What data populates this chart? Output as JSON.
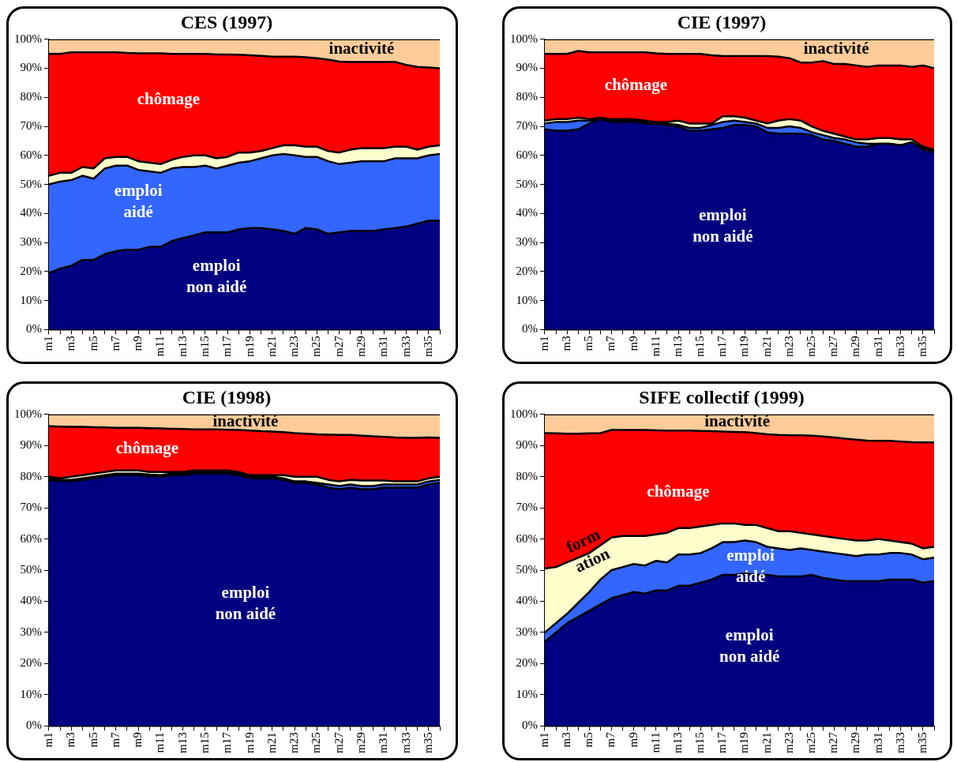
{
  "chart_data": [
    {
      "type": "area",
      "title": "CES (1997)",
      "stacked": true,
      "legend": false,
      "grid": false,
      "categories": [
        "m1",
        null,
        "m3",
        null,
        "m5",
        null,
        "m7",
        null,
        "m9",
        null,
        "m11",
        null,
        "m13",
        null,
        "m15",
        null,
        "m17",
        null,
        "m19",
        null,
        "m21",
        null,
        "m23",
        null,
        "m25",
        null,
        "m27",
        null,
        "m29",
        null,
        "m31",
        null,
        "m33",
        null,
        "m35",
        null
      ],
      "ylim": [
        0,
        100
      ],
      "yticks": [
        {
          "value": 0,
          "label": "0%"
        },
        {
          "value": 10,
          "label": "10%"
        },
        {
          "value": 20,
          "label": "20%"
        },
        {
          "value": 30,
          "label": "30%"
        },
        {
          "value": 40,
          "label": "40%"
        },
        {
          "value": 50,
          "label": "50%"
        },
        {
          "value": 60,
          "label": "60%"
        },
        {
          "value": 70,
          "label": "70%"
        },
        {
          "value": 80,
          "label": "80%"
        },
        {
          "value": 90,
          "label": "90%"
        },
        {
          "value": 100,
          "label": "100%"
        }
      ],
      "series": [
        {
          "name": "emploi non aidé",
          "color": "#000080",
          "values": [
            19.5,
            21,
            22,
            24,
            24,
            26,
            27,
            27.5,
            27.5,
            28.5,
            28.5,
            30.5,
            31.5,
            32.5,
            33.5,
            33.5,
            33.5,
            34.5,
            35,
            35,
            34.5,
            34,
            33,
            35,
            34.5,
            33,
            33.5,
            34,
            34,
            34,
            34.5,
            35,
            35.5,
            36.5,
            37.5,
            37.5
          ]
        },
        {
          "name": "emploi aidé",
          "color": "#3366ff",
          "values": [
            30.5,
            30,
            29.5,
            29,
            28,
            29.5,
            29.5,
            29,
            27.5,
            26,
            25.5,
            25,
            24.5,
            23.5,
            23,
            22,
            23,
            23,
            23,
            24,
            25.5,
            26.5,
            27,
            24.5,
            25,
            25,
            23.5,
            23.5,
            24,
            24,
            23.5,
            24,
            23.5,
            22.5,
            22.5,
            23
          ]
        },
        {
          "color": "#ffffcc",
          "values": [
            3,
            3,
            2.5,
            3,
            3.5,
            3.5,
            3,
            3,
            3,
            3,
            3,
            3,
            3.5,
            4,
            3.5,
            3.5,
            3,
            3.5,
            3,
            2.5,
            2.5,
            3,
            3.5,
            3.5,
            3.5,
            3.5,
            4,
            4.5,
            4.5,
            4.5,
            4.5,
            4,
            4,
            3,
            3,
            3
          ]
        },
        {
          "name": "chômage",
          "color": "#ff0000",
          "values": [
            42,
            41,
            41.5,
            39.5,
            40,
            36.5,
            36,
            35.8,
            37.2,
            37.7,
            38.2,
            36.5,
            35.5,
            35,
            35,
            35.8,
            35.3,
            33.7,
            33.5,
            32.8,
            31.5,
            30.5,
            30.5,
            30.8,
            30.5,
            31.5,
            31.3,
            30.2,
            29.7,
            29.7,
            29.7,
            29.2,
            28.2,
            28.5,
            27.3,
            26.5
          ]
        },
        {
          "name": "inactivité",
          "color": "#ffcc99",
          "values": [
            5,
            5,
            4.5,
            4.5,
            4.5,
            4.5,
            4.5,
            4.7,
            4.8,
            4.8,
            4.8,
            5,
            5,
            5,
            5,
            5.2,
            5.2,
            5.3,
            5.5,
            5.7,
            6,
            6,
            6,
            6.2,
            6.5,
            7,
            7.7,
            7.8,
            7.8,
            7.8,
            7.8,
            7.8,
            8.8,
            9.5,
            9.7,
            10
          ]
        }
      ]
    },
    {
      "type": "area",
      "title": "CIE (1997)",
      "stacked": true,
      "legend": false,
      "grid": false,
      "categories": [
        "m1",
        null,
        "m3",
        null,
        "m5",
        null,
        "m7",
        null,
        "m9",
        null,
        "m11",
        null,
        "m13",
        null,
        "m15",
        null,
        "m17",
        null,
        "m19",
        null,
        "m21",
        null,
        "m23",
        null,
        "m25",
        null,
        "m27",
        null,
        "m29",
        null,
        "m31",
        null,
        "m33",
        null,
        "m35",
        null
      ],
      "ylim": [
        0,
        100
      ],
      "yticks": [
        {
          "value": 0,
          "label": "0%"
        },
        {
          "value": 10,
          "label": "10%"
        },
        {
          "value": 20,
          "label": "20%"
        },
        {
          "value": 30,
          "label": "30%"
        },
        {
          "value": 40,
          "label": "40%"
        },
        {
          "value": 50,
          "label": "50%"
        },
        {
          "value": 60,
          "label": "60%"
        },
        {
          "value": 70,
          "label": "70%"
        },
        {
          "value": 80,
          "label": "80%"
        },
        {
          "value": 90,
          "label": "90%"
        },
        {
          "value": 100,
          "label": "100%"
        }
      ],
      "series": [
        {
          "name": "emploi non aidé",
          "color": "#000080",
          "values": [
            69,
            68.5,
            68.5,
            69,
            71,
            72.5,
            71.5,
            71.5,
            71.5,
            71,
            71,
            70.5,
            70,
            68.5,
            68.5,
            69,
            69.5,
            70.5,
            70.5,
            70,
            68,
            67.5,
            67.5,
            67.5,
            67,
            65.5,
            65,
            64,
            63,
            63,
            64,
            64,
            63.5,
            64.5,
            62,
            61
          ]
        },
        {
          "color": "#3366ff",
          "values": [
            2,
            3,
            3,
            3,
            1,
            0,
            0.5,
            0.5,
            0.5,
            0.5,
            0.5,
            0.5,
            0.5,
            1,
            1,
            1.5,
            2,
            1.5,
            1,
            1,
            1.5,
            2,
            2.5,
            2,
            1,
            1.5,
            1,
            1.5,
            1.5,
            1,
            0,
            0,
            0,
            0,
            0.5,
            0.5
          ]
        },
        {
          "color": "#ffffcc",
          "values": [
            1,
            1,
            1,
            1,
            0.5,
            0.5,
            0.5,
            0.5,
            0.5,
            0.5,
            0,
            0.5,
            1.5,
            1.5,
            1.5,
            0.5,
            2,
            1.5,
            1.5,
            1,
            1.5,
            2.5,
            2.5,
            2.5,
            2,
            1.5,
            1.5,
            1,
            1,
            1.5,
            2,
            2,
            2,
            1,
            0.5,
            0.5
          ]
        },
        {
          "name": "chômage",
          "color": "#ff0000",
          "values": [
            23,
            22.5,
            22.5,
            23,
            23,
            22.5,
            23,
            23,
            23,
            23.5,
            23.7,
            23.5,
            23,
            24,
            24,
            23.5,
            20.7,
            20.7,
            21.2,
            22.2,
            23.2,
            22,
            21,
            20,
            22,
            24,
            24,
            25,
            25.5,
            25,
            25,
            25,
            25.5,
            25,
            28,
            28
          ]
        },
        {
          "name": "inactivité",
          "color": "#ffcc99",
          "values": [
            5,
            5,
            5,
            4,
            4.5,
            4.5,
            4.5,
            4.5,
            4.5,
            4.5,
            4.8,
            5,
            5,
            5,
            5,
            5.5,
            5.8,
            5.8,
            5.8,
            5.8,
            5.8,
            6,
            6.5,
            8,
            8,
            7.5,
            8.5,
            8.5,
            9,
            9.5,
            9,
            9,
            9,
            9.5,
            9,
            10
          ]
        }
      ]
    },
    {
      "type": "area",
      "title": "CIE (1998)",
      "stacked": true,
      "legend": false,
      "grid": false,
      "categories": [
        "m1",
        null,
        "m3",
        null,
        "m5",
        null,
        "m7",
        null,
        "m9",
        null,
        "m11",
        null,
        "m13",
        null,
        "m15",
        null,
        "m17",
        null,
        "m19",
        null,
        "m21",
        null,
        "m23",
        null,
        "m25",
        null,
        "m27",
        null,
        "m29",
        null,
        "m31",
        null,
        "m33",
        null,
        "m35",
        null
      ],
      "ylim": [
        0,
        100
      ],
      "yticks": [
        {
          "value": 0,
          "label": "0%"
        },
        {
          "value": 10,
          "label": "10%"
        },
        {
          "value": 20,
          "label": "20%"
        },
        {
          "value": 30,
          "label": "30%"
        },
        {
          "value": 40,
          "label": "40%"
        },
        {
          "value": 50,
          "label": "50%"
        },
        {
          "value": 60,
          "label": "60%"
        },
        {
          "value": 70,
          "label": "70%"
        },
        {
          "value": 80,
          "label": "80%"
        },
        {
          "value": 90,
          "label": "90%"
        },
        {
          "value": 100,
          "label": "100%"
        }
      ],
      "series": [
        {
          "name": "emploi non aidé",
          "color": "#000080",
          "values": [
            79,
            78.5,
            78.5,
            79,
            79.5,
            80,
            80.5,
            80.5,
            80.5,
            80.2,
            80,
            80.5,
            80.5,
            81,
            81,
            81,
            81,
            80.5,
            79.5,
            79.5,
            79.5,
            79,
            78,
            78,
            77.5,
            76.5,
            76,
            76.5,
            76,
            76,
            76.5,
            76.5,
            76.5,
            76.5,
            77.5,
            78
          ]
        },
        {
          "color": "#3366ff",
          "values": [
            0.5,
            0.5,
            0.5,
            0.5,
            0.5,
            0.5,
            0.5,
            0.5,
            0.5,
            0.5,
            0.5,
            0.5,
            0.5,
            0.5,
            0.5,
            0.5,
            0.5,
            0.5,
            0.5,
            0.5,
            0.5,
            0.5,
            0.5,
            0.5,
            0.5,
            1,
            1,
            1,
            1,
            1,
            1,
            1,
            1,
            1,
            1,
            1
          ]
        },
        {
          "color": "#ffffcc",
          "values": [
            0.5,
            0.5,
            1,
            1,
            1,
            1,
            1,
            1,
            1,
            0.8,
            1,
            0.5,
            0.5,
            0.5,
            0.5,
            0.5,
            0.5,
            0.5,
            0.5,
            0.5,
            0.5,
            1,
            1.5,
            1.5,
            2,
            1.5,
            1.5,
            1.5,
            1.8,
            1.8,
            1.3,
            1,
            1,
            1,
            1,
            1
          ]
        },
        {
          "name": "chômage",
          "color": "#ff0000",
          "values": [
            16.2,
            16.6,
            16,
            15.5,
            14.9,
            14.3,
            13.7,
            13.7,
            13.7,
            14.1,
            14,
            13.9,
            13.8,
            13.2,
            13.2,
            13.2,
            13.1,
            13.5,
            14.3,
            14.1,
            14,
            13.8,
            14,
            13.8,
            13.6,
            14.5,
            14.9,
            14.4,
            14.4,
            14.2,
            14,
            14.1,
            14,
            14,
            13.1,
            12.5
          ]
        },
        {
          "name": "inactivité",
          "color": "#ffcc99",
          "values": [
            3.8,
            3.9,
            4,
            4,
            4.1,
            4.2,
            4.3,
            4.3,
            4.3,
            4.4,
            4.5,
            4.6,
            4.7,
            4.8,
            4.8,
            4.8,
            4.9,
            5,
            5.2,
            5.4,
            5.5,
            5.7,
            6,
            6.2,
            6.4,
            6.5,
            6.6,
            6.6,
            6.8,
            7,
            7.2,
            7.4,
            7.5,
            7.5,
            7.4,
            7.5
          ]
        }
      ]
    },
    {
      "type": "area",
      "title": "SIFE collectif (1999)",
      "stacked": true,
      "legend": false,
      "grid": false,
      "categories": [
        "m1",
        null,
        "m3",
        null,
        "m5",
        null,
        "m7",
        null,
        "m9",
        null,
        "m11",
        null,
        "m13",
        null,
        "m15",
        null,
        "m17",
        null,
        "m19",
        null,
        "m21",
        null,
        "m23",
        null,
        "m25",
        null,
        "m27",
        null,
        "m29",
        null,
        "m31",
        null,
        "m33",
        null,
        "m35",
        null
      ],
      "ylim": [
        0,
        100
      ],
      "yticks": [
        {
          "value": 0,
          "label": "0%"
        },
        {
          "value": 10,
          "label": "10%"
        },
        {
          "value": 20,
          "label": "20%"
        },
        {
          "value": 30,
          "label": "30%"
        },
        {
          "value": 40,
          "label": "40%"
        },
        {
          "value": 50,
          "label": "50%"
        },
        {
          "value": 60,
          "label": "60%"
        },
        {
          "value": 70,
          "label": "70%"
        },
        {
          "value": 80,
          "label": "80%"
        },
        {
          "value": 90,
          "label": "90%"
        },
        {
          "value": 100,
          "label": "100%"
        }
      ],
      "series": [
        {
          "name": "emploi non aidé",
          "color": "#000080",
          "values": [
            27,
            30,
            33,
            35,
            37,
            39,
            41,
            42,
            43,
            42.5,
            43.5,
            43.5,
            45,
            45,
            46,
            47,
            48.5,
            48.5,
            49,
            48.5,
            48.5,
            48,
            48,
            48,
            48.5,
            47.5,
            47,
            46.5,
            46.5,
            46.5,
            46.5,
            47,
            47,
            47,
            46,
            46.5
          ]
        },
        {
          "name": "emploi aidé",
          "color": "#3366ff",
          "values": [
            3,
            3,
            3,
            4.5,
            6,
            8,
            9,
            9,
            9,
            9,
            9.5,
            9,
            10,
            10,
            9.5,
            10,
            10.5,
            10.5,
            10.5,
            10.5,
            9,
            9,
            8.5,
            9,
            8,
            8.5,
            8.5,
            8.5,
            8,
            8.5,
            8.5,
            8.5,
            8.5,
            8,
            7.5,
            7.5
          ]
        },
        {
          "name": "form ation",
          "color": "#ffffcc",
          "values": [
            20.5,
            18,
            16.5,
            14.5,
            12.5,
            11,
            10.5,
            10,
            9,
            9.5,
            8.5,
            9.5,
            8.5,
            8.5,
            8.5,
            7.5,
            6,
            6,
            5,
            5.5,
            6,
            5.5,
            6,
            5,
            5,
            5,
            5,
            5,
            5,
            4.5,
            5,
            4,
            3.5,
            3.5,
            3.5,
            3.5
          ]
        },
        {
          "name": "chômage",
          "color": "#ff0000",
          "values": [
            43.5,
            42.9,
            41.3,
            39.8,
            38.4,
            36,
            34.5,
            34,
            34,
            34,
            33.4,
            32.8,
            31.3,
            31.3,
            30.7,
            30.1,
            29.5,
            29.4,
            29.8,
            29.5,
            30.1,
            30.9,
            30.8,
            31.3,
            31.7,
            31.9,
            32.1,
            32.2,
            32.4,
            32.1,
            31.5,
            32,
            32.3,
            32.6,
            34,
            33.5
          ]
        },
        {
          "name": "inactivité",
          "color": "#ffcc99",
          "values": [
            6,
            6.1,
            6.2,
            6.2,
            6.1,
            6,
            5,
            5,
            5,
            5,
            5.1,
            5.2,
            5.2,
            5.2,
            5.3,
            5.4,
            5.5,
            5.6,
            5.7,
            6,
            6.4,
            6.6,
            6.7,
            6.7,
            6.8,
            7.1,
            7.4,
            7.8,
            8.1,
            8.4,
            8.5,
            8.5,
            8.7,
            8.9,
            9,
            9
          ]
        }
      ]
    }
  ]
}
